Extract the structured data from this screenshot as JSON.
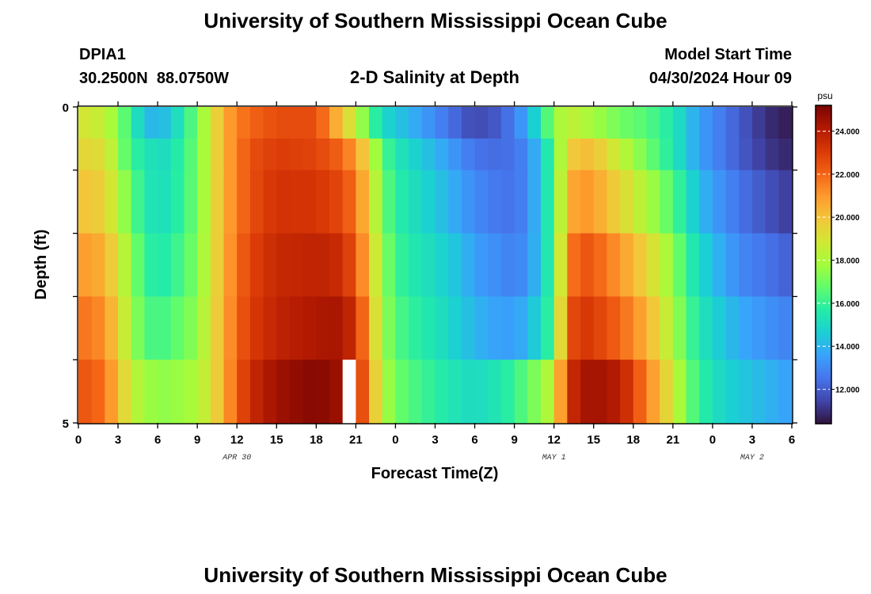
{
  "header": {
    "title": "University of Southern Mississippi Ocean Cube",
    "station_id": "DPIA1",
    "station_coords": "30.2500N  88.0750W",
    "subtitle": "2-D Salinity at Depth",
    "model_label": "Model Start Time",
    "model_time": "04/30/2024 Hour 09"
  },
  "footer": {
    "title": "University of Southern Mississippi Ocean Cube"
  },
  "chart_data": {
    "type": "heatmap",
    "title": "2-D Salinity at Depth",
    "xlabel": "Forecast Time(Z)",
    "ylabel": "Depth (ft)",
    "xlim": [
      0,
      54
    ],
    "ylim": [
      5,
      0
    ],
    "x_ticks": [
      {
        "value": 0,
        "label": "0"
      },
      {
        "value": 3,
        "label": "3"
      },
      {
        "value": 6,
        "label": "6"
      },
      {
        "value": 9,
        "label": "9"
      },
      {
        "value": 12,
        "label": "12"
      },
      {
        "value": 15,
        "label": "15"
      },
      {
        "value": 18,
        "label": "18"
      },
      {
        "value": 21,
        "label": "21"
      },
      {
        "value": 24,
        "label": "0"
      },
      {
        "value": 27,
        "label": "3"
      },
      {
        "value": 30,
        "label": "6"
      },
      {
        "value": 33,
        "label": "9"
      },
      {
        "value": 36,
        "label": "12"
      },
      {
        "value": 39,
        "label": "15"
      },
      {
        "value": 42,
        "label": "18"
      },
      {
        "value": 45,
        "label": "21"
      },
      {
        "value": 48,
        "label": "0"
      },
      {
        "value": 51,
        "label": "3"
      },
      {
        "value": 54,
        "label": "6"
      }
    ],
    "y_ticks": [
      {
        "value": 0,
        "label": "0"
      },
      {
        "value": 1,
        "label": ""
      },
      {
        "value": 2,
        "label": ""
      },
      {
        "value": 3,
        "label": ""
      },
      {
        "value": 4,
        "label": ""
      },
      {
        "value": 5,
        "label": "5"
      }
    ],
    "date_labels": [
      {
        "x": 12,
        "label": "APR 30"
      },
      {
        "x": 36,
        "label": "MAY 1"
      },
      {
        "x": 51,
        "label": "MAY 2"
      }
    ],
    "depth_levels": [
      0.25,
      0.75,
      1.25,
      2.25,
      3.25,
      4.25
    ],
    "depth_edges": [
      0,
      0.5,
      1,
      2,
      3,
      4,
      5
    ],
    "missing": [
      {
        "hour": 20,
        "depth_index": 5
      }
    ],
    "colorbar": {
      "unit": "psu",
      "min": 10.4,
      "max": 25.2,
      "ticks": [
        {
          "value": 12,
          "label": "12.000"
        },
        {
          "value": 14,
          "label": "14.000"
        },
        {
          "value": 16,
          "label": "16.000"
        },
        {
          "value": 18,
          "label": "18.000"
        },
        {
          "value": 20,
          "label": "20.000"
        },
        {
          "value": 22,
          "label": "22.000"
        },
        {
          "value": 24,
          "label": "24.000"
        }
      ],
      "colors": [
        "#30123b",
        "#4145ab",
        "#4675ed",
        "#39a2fc",
        "#1bcfd4",
        "#24eca6",
        "#61fc6c",
        "#a4fc3b",
        "#d1e834",
        "#f3c63a",
        "#fe9b2d",
        "#f36315",
        "#d93806",
        "#b11901",
        "#7a0402"
      ]
    },
    "time_profile_hours": [
      0,
      2,
      4,
      5,
      6,
      7,
      9,
      10,
      11,
      12,
      13,
      15,
      18,
      19.5,
      21,
      22,
      23,
      24,
      25,
      27,
      29,
      30,
      32,
      33,
      34,
      35,
      36,
      37,
      38,
      39,
      41,
      43,
      45,
      46,
      47,
      48,
      50,
      52,
      54
    ],
    "depth_profiles": [
      {
        "depth": 0.25,
        "values": [
          19.0,
          18.5,
          16.0,
          14.2,
          14.0,
          14.5,
          17.0,
          18.8,
          20.5,
          21.5,
          22.0,
          22.6,
          22.6,
          20.5,
          18.5,
          16.5,
          15.0,
          14.5,
          14.0,
          13.0,
          12.0,
          11.5,
          12.0,
          12.8,
          13.8,
          15.5,
          17.5,
          18.5,
          18.2,
          17.8,
          17.0,
          16.5,
          15.5,
          14.5,
          13.5,
          13.0,
          12.0,
          11.0,
          10.6
        ]
      },
      {
        "depth": 0.75,
        "values": [
          19.5,
          19.2,
          16.0,
          15.5,
          15.0,
          15.2,
          17.0,
          18.8,
          20.5,
          21.5,
          22.5,
          23.0,
          22.8,
          22.2,
          21.0,
          19.0,
          16.5,
          15.5,
          15.0,
          14.0,
          13.0,
          12.5,
          12.3,
          12.5,
          13.0,
          14.5,
          16.5,
          19.5,
          20.2,
          20.0,
          18.5,
          17.0,
          15.5,
          14.5,
          13.5,
          13.0,
          12.0,
          11.2,
          10.8
        ]
      },
      {
        "depth": 1.25,
        "values": [
          20.0,
          19.6,
          16.8,
          15.5,
          15.2,
          15.3,
          17.0,
          18.8,
          20.5,
          21.5,
          22.5,
          23.3,
          23.2,
          22.8,
          21.8,
          19.5,
          17.0,
          15.8,
          15.3,
          14.5,
          13.5,
          13.0,
          12.5,
          12.5,
          13.0,
          14.5,
          16.5,
          20.2,
          21.2,
          20.8,
          19.5,
          18.0,
          16.5,
          15.3,
          14.2,
          13.5,
          12.5,
          11.8,
          11.2
        ]
      },
      {
        "depth": 2.25,
        "values": [
          21.0,
          20.5,
          17.5,
          16.0,
          15.5,
          15.8,
          17.2,
          18.8,
          20.5,
          21.8,
          22.8,
          23.6,
          23.8,
          23.6,
          22.5,
          20.0,
          17.5,
          16.2,
          15.6,
          15.0,
          14.2,
          13.5,
          13.0,
          12.8,
          13.2,
          14.5,
          16.5,
          21.2,
          22.5,
          22.2,
          21.0,
          19.5,
          17.5,
          16.0,
          15.0,
          14.2,
          13.0,
          12.5,
          12.0
        ]
      },
      {
        "depth": 3.25,
        "values": [
          21.8,
          21.2,
          17.8,
          16.5,
          16.2,
          16.5,
          17.5,
          19.0,
          20.5,
          22.0,
          23.0,
          23.8,
          24.2,
          24.3,
          23.5,
          20.5,
          17.8,
          16.5,
          16.0,
          15.3,
          14.5,
          14.0,
          13.5,
          13.5,
          14.0,
          15.0,
          16.5,
          22.2,
          23.2,
          23.0,
          22.0,
          20.5,
          18.0,
          16.5,
          15.5,
          14.8,
          13.8,
          13.2,
          12.8
        ]
      },
      {
        "depth": 4.25,
        "values": [
          22.5,
          21.8,
          18.5,
          17.8,
          17.5,
          17.5,
          18.0,
          19.0,
          20.5,
          22.2,
          23.5,
          24.5,
          25.0,
          24.6,
          24.0,
          21.0,
          18.2,
          17.0,
          16.5,
          15.8,
          15.2,
          15.0,
          15.5,
          16.0,
          16.8,
          17.5,
          18.5,
          23.2,
          24.2,
          24.5,
          24.0,
          21.5,
          18.8,
          17.0,
          16.0,
          15.2,
          14.5,
          14.0,
          13.5
        ]
      }
    ]
  }
}
